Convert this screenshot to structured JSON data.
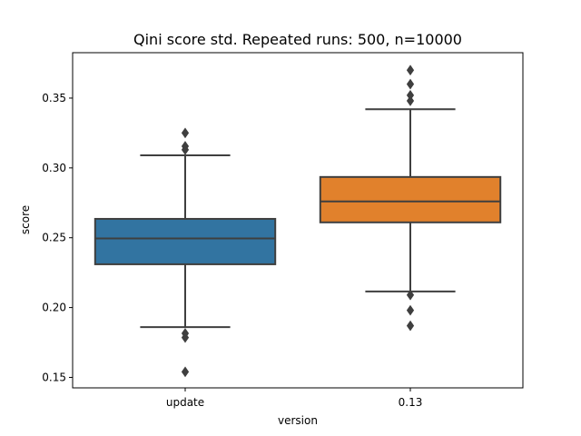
{
  "chart_data": {
    "type": "box",
    "title": "Qini score std. Repeated runs: 500, n=10000",
    "xlabel": "version",
    "ylabel": "score",
    "categories": [
      "update",
      "0.13"
    ],
    "ylim": [
      0.1425,
      0.3825
    ],
    "yticks": [
      0.15,
      0.2,
      0.25,
      0.3,
      0.35
    ],
    "ytick_labels": [
      "0.15",
      "0.20",
      "0.25",
      "0.30",
      "0.35"
    ],
    "grid": false,
    "legend": "none",
    "series": [
      {
        "category": "update",
        "color": "#3274a1",
        "whisker_low": 0.186,
        "q1": 0.231,
        "median": 0.2495,
        "q3": 0.2635,
        "whisker_high": 0.309,
        "outliers": [
          0.154,
          0.1785,
          0.1815,
          0.313,
          0.3155,
          0.325
        ]
      },
      {
        "category": "0.13",
        "color": "#e1812c",
        "whisker_low": 0.2115,
        "q1": 0.261,
        "median": 0.276,
        "q3": 0.2935,
        "whisker_high": 0.342,
        "outliers": [
          0.187,
          0.198,
          0.209,
          0.348,
          0.352,
          0.36,
          0.37
        ]
      }
    ]
  }
}
